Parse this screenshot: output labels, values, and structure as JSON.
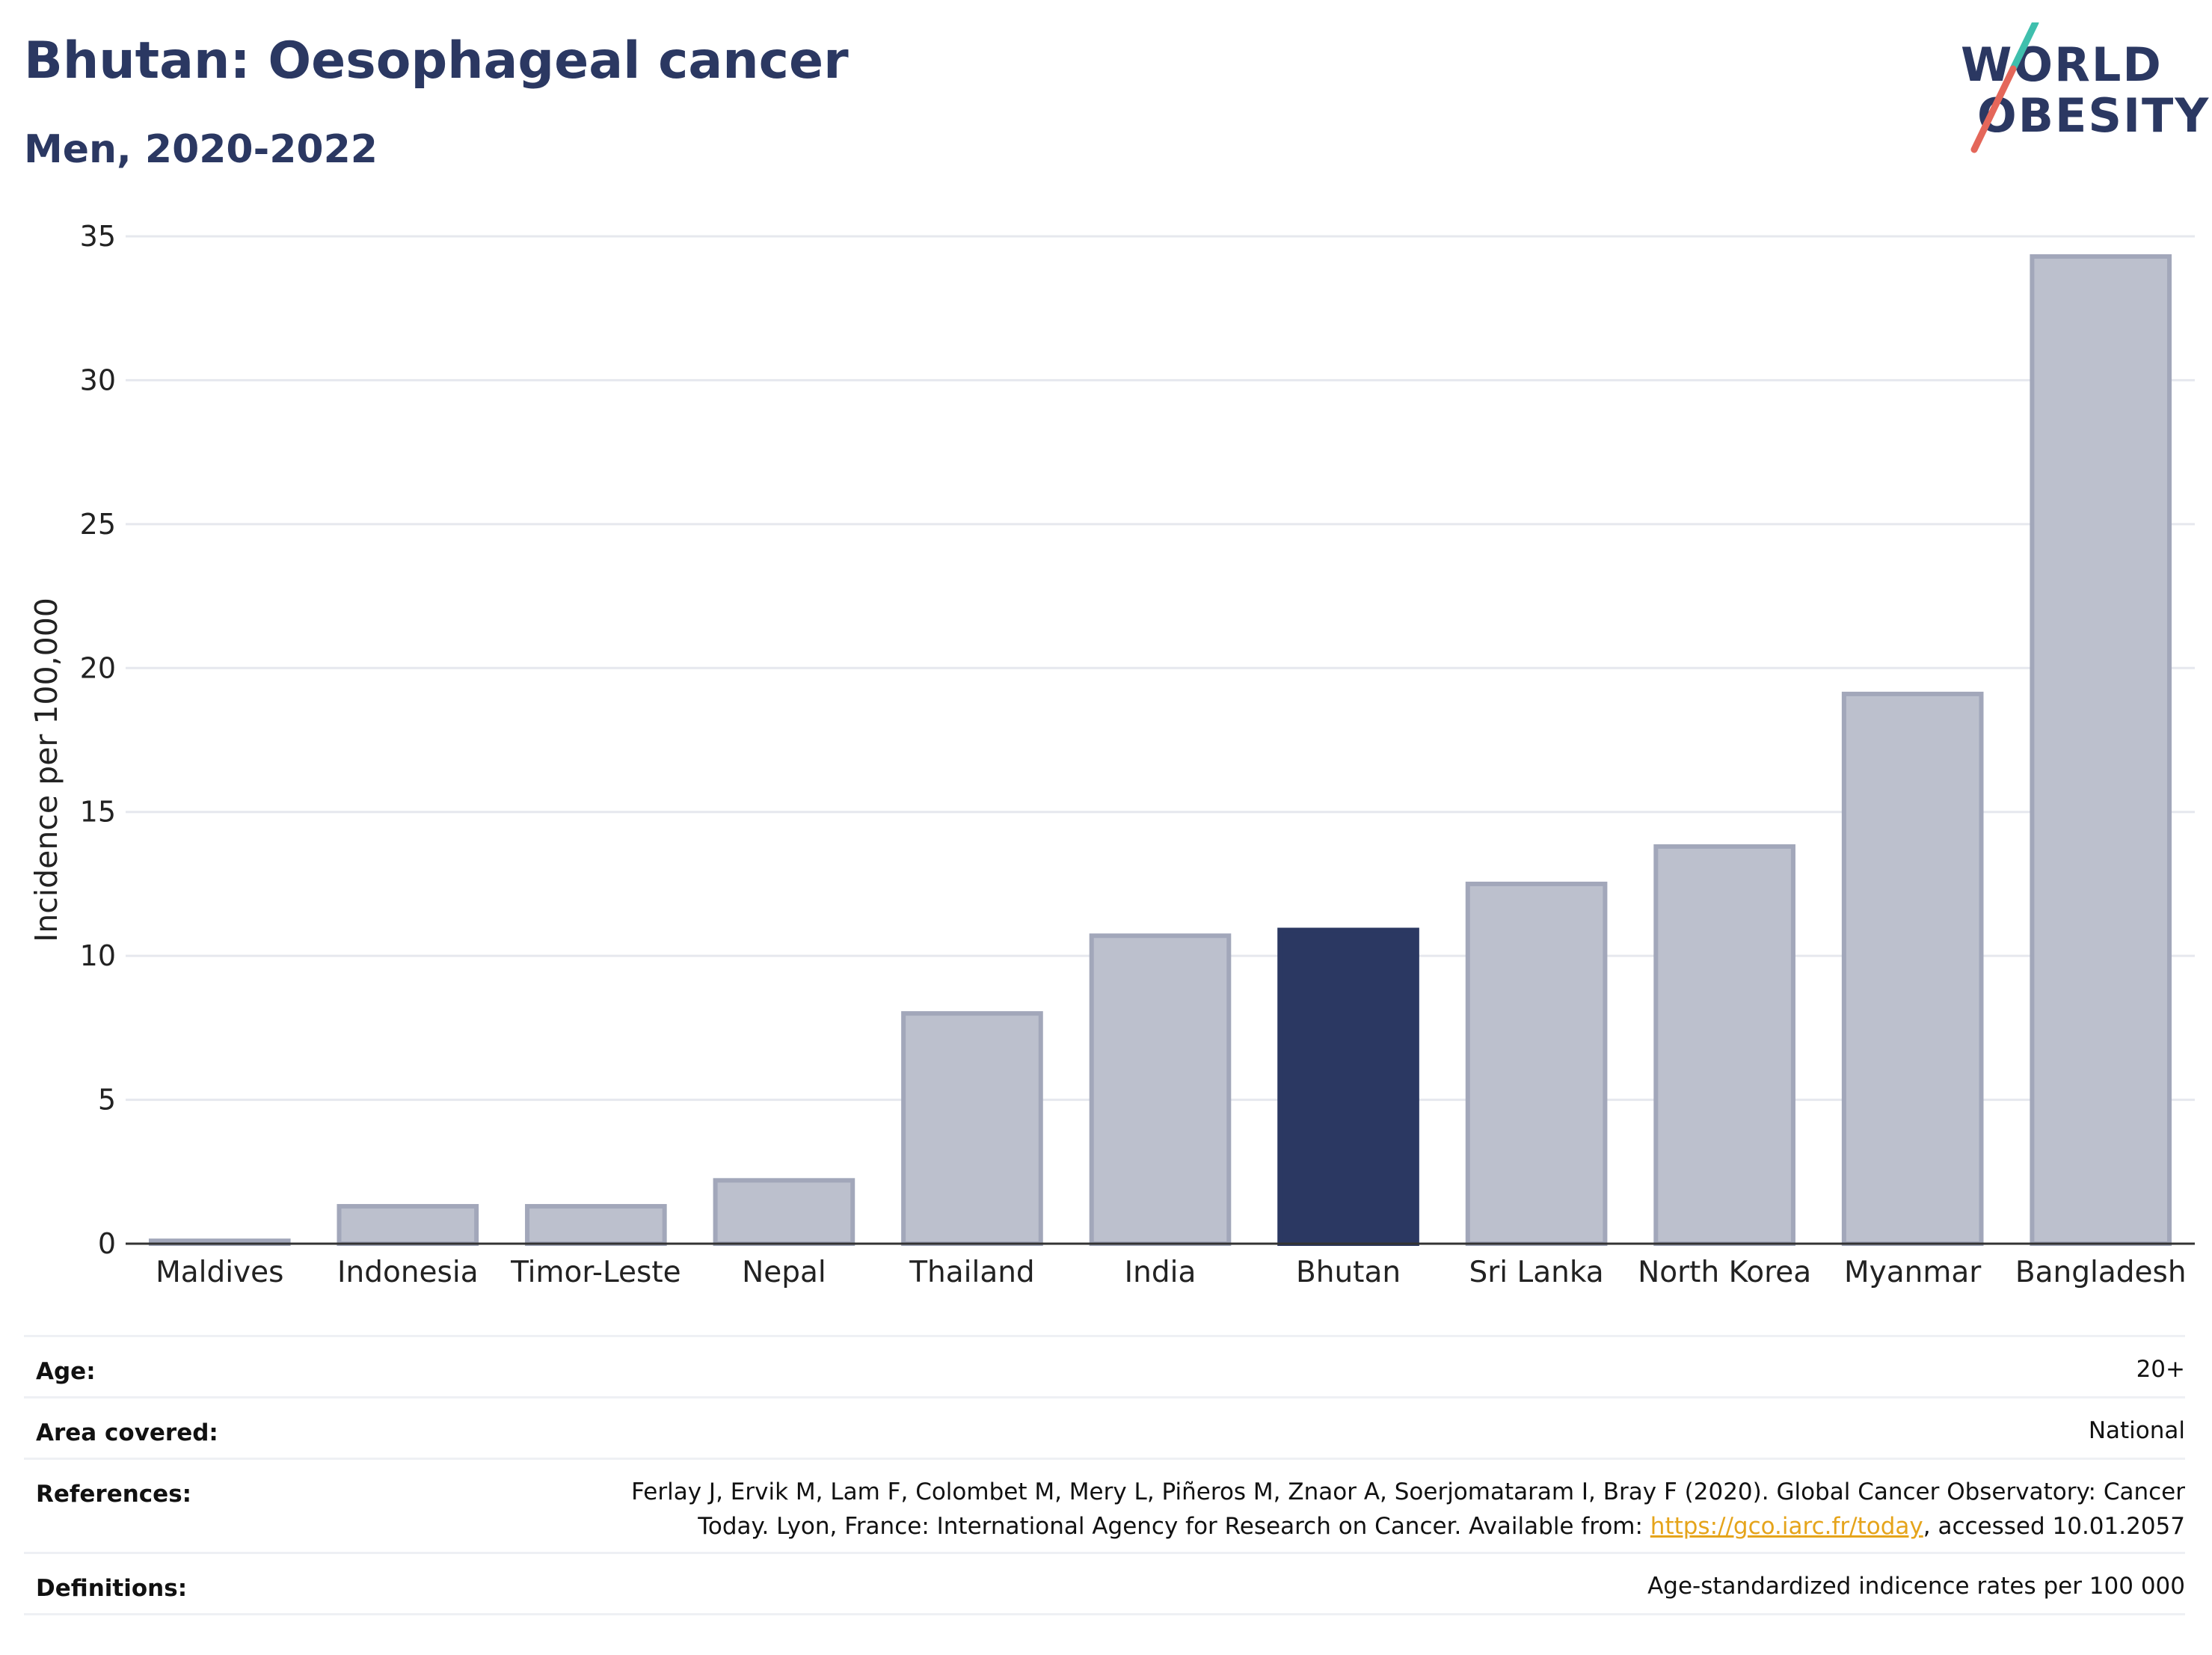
{
  "header": {
    "title": "Bhutan: Oesophageal cancer",
    "subtitle": "Men, 2020-2022"
  },
  "logo": {
    "line1": "WORLD",
    "line2": "OBESITY",
    "colors": {
      "navy": "#2b3862",
      "teal": "#3fbfad",
      "coral": "#e4675a"
    }
  },
  "chart_data": {
    "type": "bar",
    "categories": [
      "Maldives",
      "Indonesia",
      "Timor-Leste",
      "Nepal",
      "Thailand",
      "India",
      "Bhutan",
      "Sri Lanka",
      "North Korea",
      "Myanmar",
      "Bangladesh"
    ],
    "values": [
      0.1,
      1.3,
      1.3,
      2.2,
      8.0,
      10.7,
      10.9,
      12.5,
      13.8,
      19.1,
      34.3
    ],
    "highlight": "Bhutan",
    "title": "",
    "xlabel": "",
    "ylabel": "Incidence per 100,000",
    "ylim": [
      0,
      35
    ],
    "yticks": [
      0,
      5,
      10,
      15,
      20,
      25,
      30,
      35
    ],
    "grid": true,
    "colors": {
      "bar": "#bcc0cd",
      "bar_border": "#a2a7ba",
      "highlight": "#2b3862"
    }
  },
  "meta": {
    "age": {
      "label": "Age:",
      "value": "20+"
    },
    "area": {
      "label": "Area covered:",
      "value": "National"
    },
    "references": {
      "label": "References:",
      "line1": "Ferlay J, Ervik M, Lam F, Colombet M, Mery L, Piñeros M, Znaor A, Soerjomataram I, Bray F (2020). Global Cancer Observatory: Cancer",
      "line2_pre": "Today. Lyon, France: International Agency for Research on Cancer. Available from: ",
      "link": "https://gco.iarc.fr/today",
      "line2_post": ", accessed 10.01.2057"
    },
    "definitions": {
      "label": "Definitions:",
      "value": "Age-standardized indicence rates per 100 000"
    }
  }
}
